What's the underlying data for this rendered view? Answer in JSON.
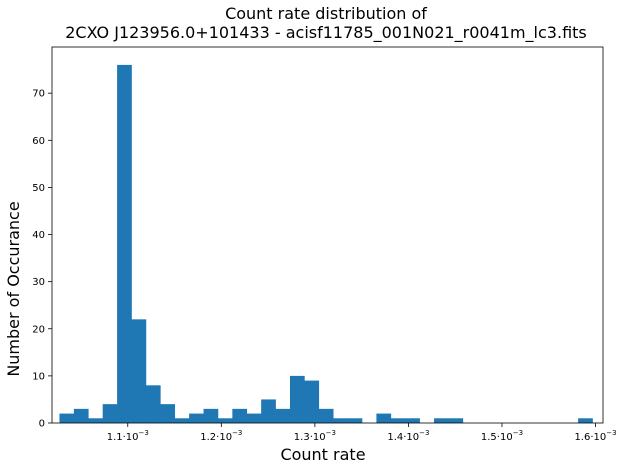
{
  "chart_data": {
    "type": "bar",
    "title_line1": "Count rate distribution of",
    "title_line2": "2CXO J123956.0+101433 - acisf11785_001N021_r0041m_lc3.fits",
    "xlabel": "Count rate",
    "ylabel": "Number of Occurance",
    "xlim": [
      0.001019,
      0.001608
    ],
    "ylim": [
      0,
      79.8
    ],
    "grid": false,
    "bar_color": "#1f77b4",
    "bin_start": 0.00102699,
    "bin_width": 1.54e-05,
    "counts": [
      2,
      3,
      1,
      4,
      76,
      22,
      8,
      4,
      1,
      2,
      3,
      1,
      3,
      2,
      5,
      3,
      10,
      9,
      3,
      1,
      1,
      0,
      2,
      1,
      1,
      0,
      1,
      1,
      0,
      0,
      0,
      0,
      0,
      0,
      0,
      0,
      1
    ],
    "y_ticks": [
      0,
      10,
      20,
      30,
      40,
      50,
      60,
      70
    ],
    "x_ticks": [
      {
        "value": 0.0011,
        "mantissa": "1.1",
        "base": "·10",
        "exp": "−3"
      },
      {
        "value": 0.0012,
        "mantissa": "1.2",
        "base": "·10",
        "exp": "−3"
      },
      {
        "value": 0.0013,
        "mantissa": "1.3",
        "base": "·10",
        "exp": "−3"
      },
      {
        "value": 0.0014,
        "mantissa": "1.4",
        "base": "·10",
        "exp": "−3"
      },
      {
        "value": 0.0015,
        "mantissa": "1.5",
        "base": "·10",
        "exp": "−3"
      },
      {
        "value": 0.0016,
        "mantissa": "1.6",
        "base": "·10",
        "exp": "−3"
      }
    ]
  }
}
